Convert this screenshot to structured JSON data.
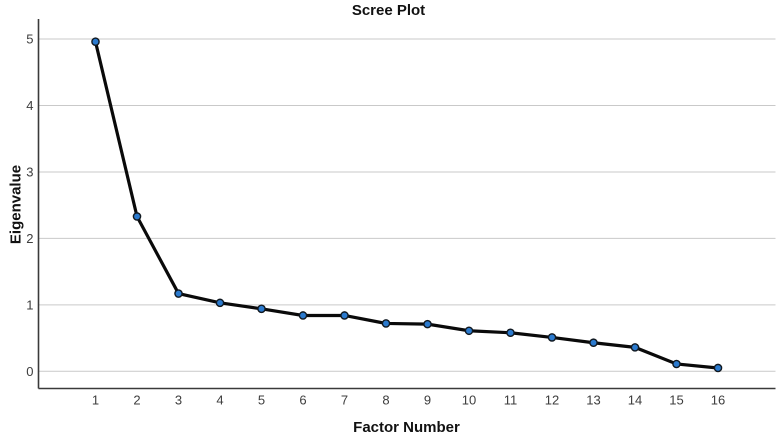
{
  "chart_data": {
    "type": "line",
    "title": "Scree Plot",
    "xlabel": "Factor Number",
    "ylabel": "Eigenvalue",
    "x": [
      1,
      2,
      3,
      4,
      5,
      6,
      7,
      8,
      9,
      10,
      11,
      12,
      13,
      14,
      15,
      16
    ],
    "values": [
      4.96,
      2.33,
      1.17,
      1.03,
      0.94,
      0.84,
      0.84,
      0.72,
      0.71,
      0.61,
      0.58,
      0.51,
      0.43,
      0.36,
      0.11,
      0.05
    ],
    "yticks": [
      0,
      1,
      2,
      3,
      4,
      5
    ],
    "ylim": [
      0,
      5.3
    ],
    "grid": "horizontal",
    "legend": "none",
    "colors": {
      "line": "#0a0a0a",
      "marker_fill": "#2b7ace",
      "marker_stroke": "#101820",
      "gridline": "#c9c9c9",
      "axis": "#3a3a3a",
      "tick_label": "#3d3d3d"
    }
  }
}
